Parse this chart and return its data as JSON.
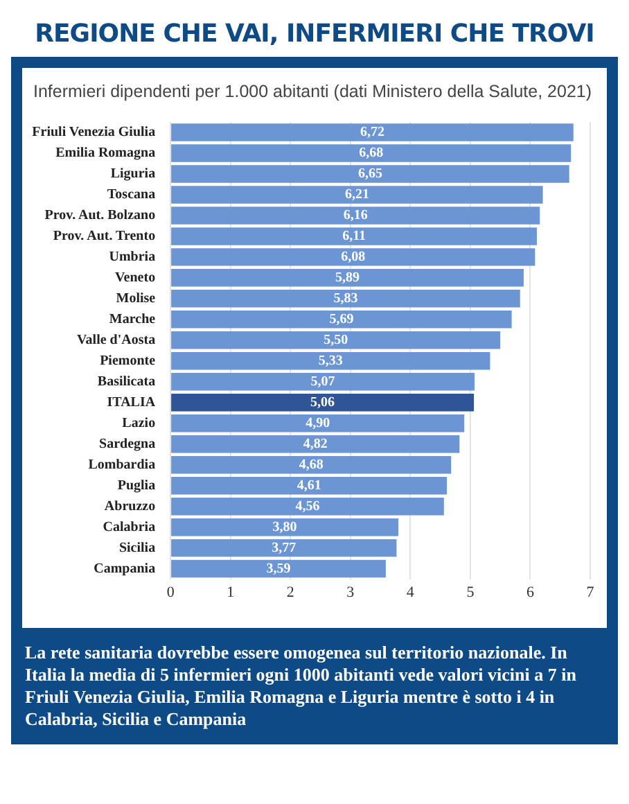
{
  "chart_data": {
    "type": "bar",
    "orientation": "horizontal",
    "title": "REGIONE CHE VAI, INFERMIERI CHE TROVI",
    "subtitle": "Infermieri dipendenti per 1.000 abitanti (dati Ministero della Salute, 2021)",
    "categories": [
      "Friuli Venezia Giulia",
      "Emilia Romagna",
      "Liguria",
      "Toscana",
      "Prov. Aut. Bolzano",
      "Prov. Aut. Trento",
      "Umbria",
      "Veneto",
      "Molise",
      "Marche",
      "Valle d'Aosta",
      "Piemonte",
      "Basilicata",
      "ITALIA",
      "Lazio",
      "Sardegna",
      "Lombardia",
      "Puglia",
      "Abruzzo",
      "Calabria",
      "Sicilia",
      "Campania"
    ],
    "values": [
      6.72,
      6.68,
      6.65,
      6.21,
      6.16,
      6.11,
      6.08,
      5.89,
      5.83,
      5.69,
      5.5,
      5.33,
      5.07,
      5.06,
      4.9,
      4.82,
      4.68,
      4.61,
      4.56,
      3.8,
      3.77,
      3.59
    ],
    "value_labels": [
      "6,72",
      "6,68",
      "6,65",
      "6,21",
      "6,16",
      "6,11",
      "6,08",
      "5,89",
      "5,83",
      "5,69",
      "5,50",
      "5,33",
      "5,07",
      "5,06",
      "4,90",
      "4,82",
      "4,68",
      "4,61",
      "4,56",
      "3,80",
      "3,77",
      "3,59"
    ],
    "colors": [
      "#6b95d3",
      "#6b95d3",
      "#6b95d3",
      "#6b95d3",
      "#6b95d3",
      "#6b95d3",
      "#6b95d3",
      "#6b95d3",
      "#6b95d3",
      "#6b95d3",
      "#6b95d3",
      "#6b95d3",
      "#6b95d3",
      "#2f5597",
      "#6b95d3",
      "#6b95d3",
      "#6b95d3",
      "#6b95d3",
      "#6b95d3",
      "#6b95d3",
      "#6b95d3",
      "#6b95d3"
    ],
    "xlim": [
      0,
      7
    ],
    "xticks": [
      0,
      1,
      2,
      3,
      4,
      5,
      6,
      7
    ],
    "grid": "x",
    "legend": false,
    "annotations": [
      "La rete sanitaria dovrebbe essere omogenea sul territorio nazionale. In Italia la media di 5 infermieri ogni 1000 abitanti vede valori vicini a 7 in Friuli Venezia Giulia, Emilia Romagna e Liguria mentre è sotto i 4 in Calabria, Sicilia e Campania"
    ]
  }
}
